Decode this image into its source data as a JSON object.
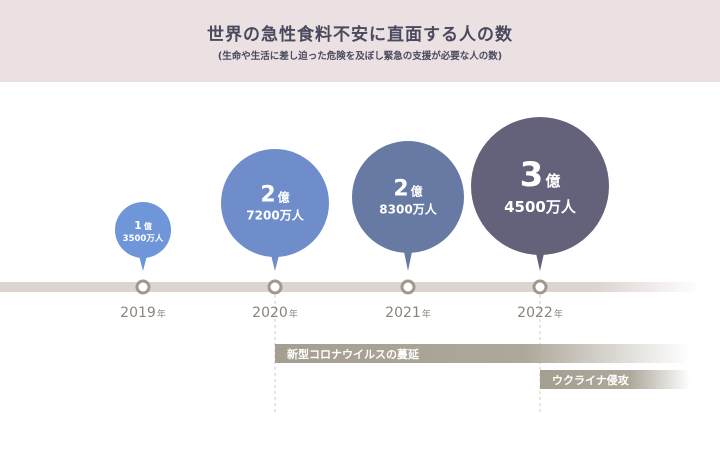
{
  "header": {
    "title": "世界の急性食料不安に直面する人の数",
    "subtitle": "(生命や生活に差し迫った危険を及ぼし緊急の支援が必要な人の数)"
  },
  "colors": {
    "header_bg": "#ebe0e2",
    "timeline": "#ddd3d1",
    "markers": "#a09a8c",
    "event_bar": "#a59f91"
  },
  "chart_data": {
    "type": "bubble-timeline",
    "title": "世界の急性食料不安に直面する人の数",
    "subtitle": "(生命や生活に差し迫った危険を及ぼし緊急の支援が必要な人の数)",
    "points": [
      {
        "year": "2019",
        "year_unit": "年",
        "value_oku": "1",
        "value_oku_unit": "億",
        "value_man": "3500万人",
        "value_people": 135000000,
        "color": "#6f96d8"
      },
      {
        "year": "2020",
        "year_unit": "年",
        "value_oku": "2",
        "value_oku_unit": "億",
        "value_man": "7200万人",
        "value_people": 272000000,
        "color": "#6e8dca"
      },
      {
        "year": "2021",
        "year_unit": "年",
        "value_oku": "2",
        "value_oku_unit": "億",
        "value_man": "8300万人",
        "value_people": 283000000,
        "color": "#667aa4"
      },
      {
        "year": "2022",
        "year_unit": "年",
        "value_oku": "3",
        "value_oku_unit": "億",
        "value_man": "4500万人",
        "value_people": 345000000,
        "color": "#63627a"
      }
    ],
    "events": [
      {
        "label": "新型コロナウイルスの蔓延",
        "start_year": "2020"
      },
      {
        "label": "ウクライナ侵攻",
        "start_year": "2022"
      }
    ]
  }
}
